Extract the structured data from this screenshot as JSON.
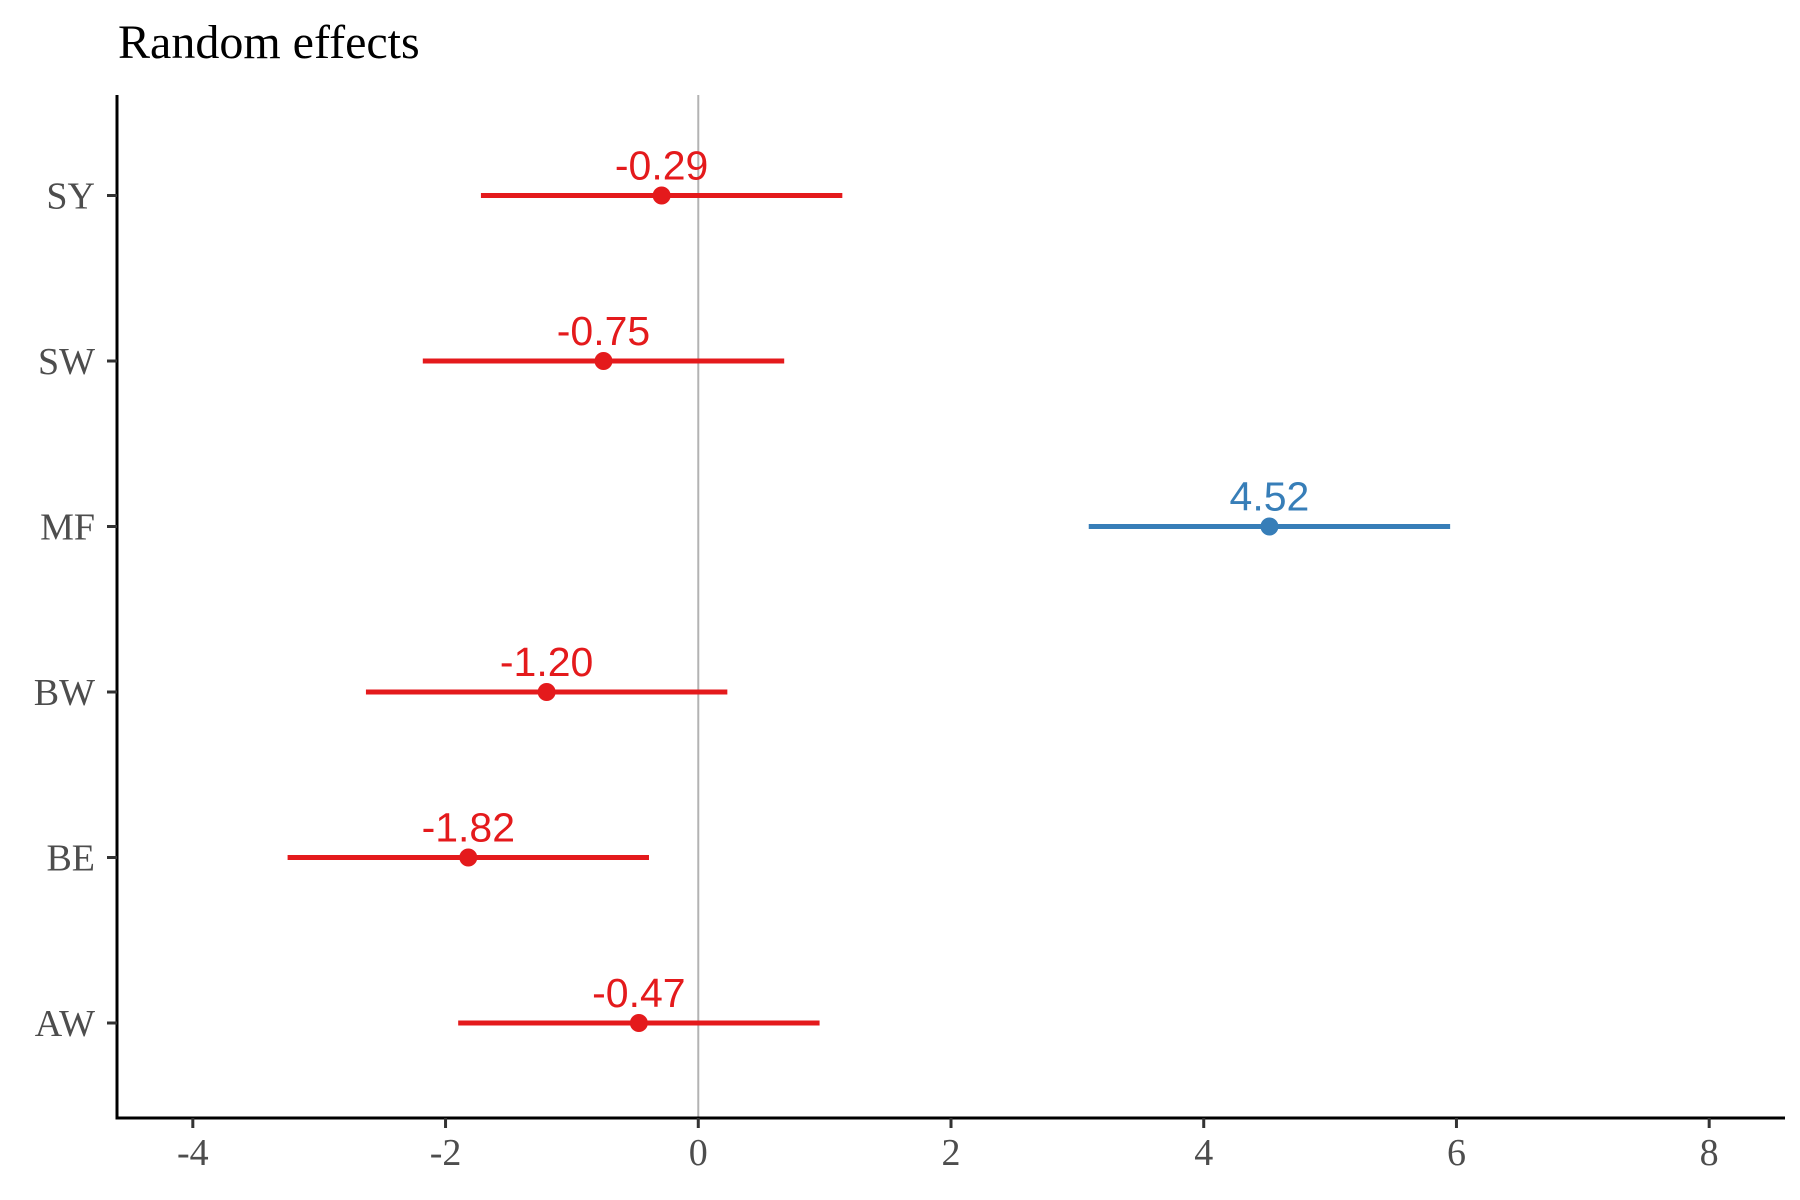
{
  "chart_data": {
    "type": "scatter",
    "title": "Random effects",
    "xlabel": "",
    "ylabel": "",
    "xlim": [
      -4.6,
      8.6
    ],
    "x_ticks": [
      -4,
      -2,
      0,
      2,
      4,
      6,
      8
    ],
    "x_tick_labels": [
      "-4",
      "-2",
      "0",
      "2",
      "4",
      "6",
      "8"
    ],
    "reference_line_x": 0,
    "grid": false,
    "legend": "none",
    "categories": [
      "AW",
      "BE",
      "BW",
      "MF",
      "SW",
      "SY"
    ],
    "points": [
      {
        "label": "AW",
        "estimate": -0.47,
        "lower": -1.9,
        "upper": 0.96,
        "value_label": "-0.47",
        "color": "#e41a1c"
      },
      {
        "label": "BE",
        "estimate": -1.82,
        "lower": -3.25,
        "upper": -0.39,
        "value_label": "-1.82",
        "color": "#e41a1c"
      },
      {
        "label": "BW",
        "estimate": -1.2,
        "lower": -2.63,
        "upper": 0.23,
        "value_label": "-1.20",
        "color": "#e41a1c"
      },
      {
        "label": "MF",
        "estimate": 4.52,
        "lower": 3.09,
        "upper": 5.95,
        "value_label": "4.52",
        "color": "#377eb8"
      },
      {
        "label": "SW",
        "estimate": -0.75,
        "lower": -2.18,
        "upper": 0.68,
        "value_label": "-0.75",
        "color": "#e41a1c"
      },
      {
        "label": "SY",
        "estimate": -0.29,
        "lower": -1.72,
        "upper": 1.14,
        "value_label": "-0.29",
        "color": "#e41a1c"
      }
    ]
  }
}
